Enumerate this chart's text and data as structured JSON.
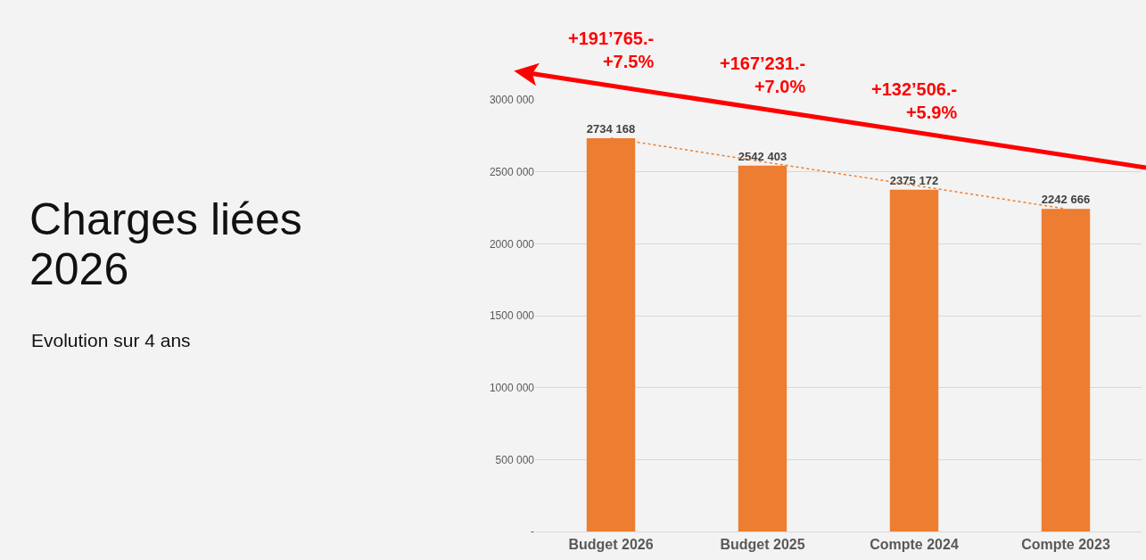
{
  "chart_data": {
    "type": "bar",
    "title": "Charges liées 2026",
    "subtitle": "Evolution sur 4 ans",
    "categories": [
      "Budget 2026",
      "Budget 2025",
      "Compte 2024",
      "Compte 2023"
    ],
    "series": [
      {
        "color": "#ed7d31",
        "values": [
          2734168,
          2542403,
          2375172,
          2242666
        ],
        "value_labels": [
          "2734 168",
          "2542 403",
          "2375 172",
          "2242 666"
        ]
      },
      {
        "type": "line",
        "x": [
          "Budget 2026",
          "Compte 2023"
        ],
        "values": [
          2734168,
          2242666
        ],
        "color": "#ed7d31",
        "line_style": "dotted"
      }
    ],
    "ylim": [
      0,
      3000000
    ],
    "yticks": [
      {
        "value": 0,
        "label": "-"
      },
      {
        "value": 500000,
        "label": "500 000"
      },
      {
        "value": 1000000,
        "label": "1000 000"
      },
      {
        "value": 1500000,
        "label": "1500 000"
      },
      {
        "value": 2000000,
        "label": "2000 000"
      },
      {
        "value": 2500000,
        "label": "2500 000"
      },
      {
        "value": 3000000,
        "label": "3000 000"
      }
    ],
    "grid": "y",
    "legend": false,
    "annotations": [
      "+191’765.-\n+7.5%",
      "+167’231.-\n+7.0%",
      "+132’506.-\n+5.9%"
    ]
  }
}
